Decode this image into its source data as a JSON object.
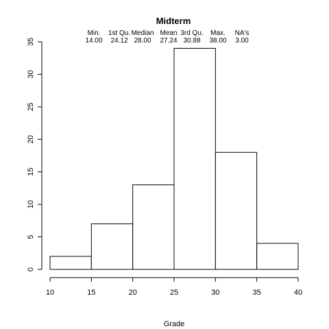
{
  "chart_data": {
    "type": "bar",
    "title": "Midterm",
    "xlabel": "Grade",
    "ylabel": "",
    "bins": [
      [
        10,
        15
      ],
      [
        15,
        20
      ],
      [
        20,
        25
      ],
      [
        25,
        30
      ],
      [
        30,
        35
      ],
      [
        35,
        40
      ]
    ],
    "values": [
      2,
      7,
      13,
      34,
      18,
      4
    ],
    "xlim": [
      10,
      40
    ],
    "ylim": [
      0,
      35
    ],
    "x_ticks": [
      "10",
      "15",
      "20",
      "25",
      "30",
      "35",
      "40"
    ],
    "y_ticks": [
      "0",
      "5",
      "10",
      "15",
      "20",
      "25",
      "30",
      "35"
    ],
    "grid": false,
    "summary": {
      "headers": [
        "Min.",
        "1st Qu.",
        "Median",
        "Mean",
        "3rd Qu.",
        "Max.",
        "NA's"
      ],
      "values": [
        "14.00",
        "24.12",
        "28.00",
        "27.24",
        "30.88",
        "38.00",
        "3.00"
      ]
    }
  }
}
